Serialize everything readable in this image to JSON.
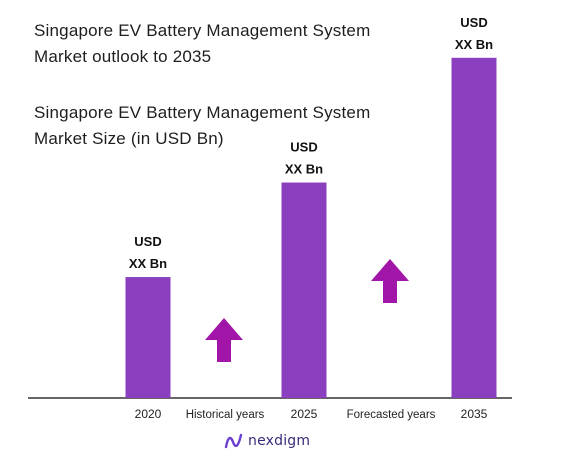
{
  "header": {
    "title_line1": "Singapore EV Battery Management System",
    "title_line2": "Market outlook to 2035"
  },
  "chart_data": {
    "type": "bar",
    "title": "Singapore EV Battery Management System Market Size (in USD Bn)",
    "title_line1": "Singapore EV Battery Management System",
    "title_line2": "Market Size (in USD Bn)",
    "categories": [
      "2020",
      "2025",
      "2035"
    ],
    "values": [
      0.32,
      0.57,
      0.9
    ],
    "data_labels": [
      {
        "line1": "USD",
        "line2": "XX Bn"
      },
      {
        "line1": "USD",
        "line2": "XX Bn"
      },
      {
        "line1": "USD",
        "line2": "XX Bn"
      }
    ],
    "period_labels": [
      "Historical years",
      "Forecasted years"
    ],
    "ylim": [
      0,
      1
    ],
    "grid": false,
    "colors": {
      "bar": "#8a3fbf",
      "arrow": "#a116a8",
      "axis": "#333333"
    }
  },
  "footer": {
    "brand": "nexdigm",
    "logo_icon": "nexdigm-logo-icon"
  }
}
